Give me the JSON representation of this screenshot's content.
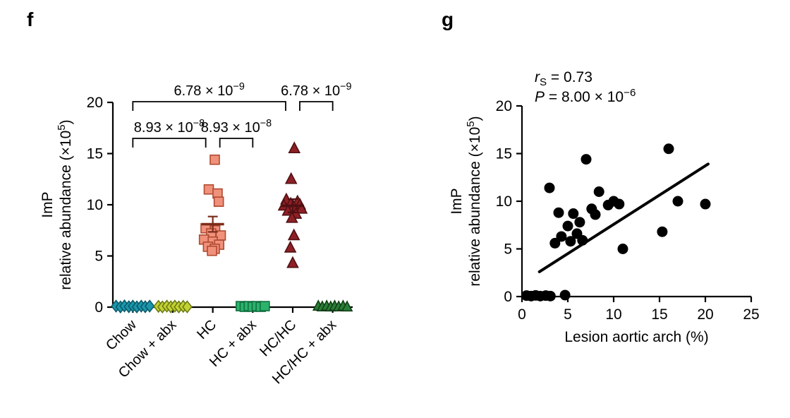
{
  "panels": {
    "f": {
      "label": "f"
    },
    "g": {
      "label": "g"
    }
  },
  "chart_data": [
    {
      "id": "f",
      "type": "scatter",
      "title": "",
      "ylabel": {
        "line1": "ImP",
        "line2_pre": "relative abundance (×10",
        "line2_sup": "5",
        "line2_post": ")"
      },
      "ylim": [
        0,
        20
      ],
      "yticks": [
        0,
        5,
        10,
        15,
        20
      ],
      "categories": [
        "Chow",
        "Chow + abx",
        "HC",
        "HC + abx",
        "HC/HC",
        "HC/HC + abx"
      ],
      "groups": [
        {
          "name": "Chow",
          "marker": "diamond",
          "fill": "#1b96ac",
          "stroke": "#0b5a68",
          "size": 14,
          "points": [
            [
              -0.42,
              0.1
            ],
            [
              -0.31,
              0.02
            ],
            [
              -0.21,
              0.12
            ],
            [
              -0.1,
              0.04
            ],
            [
              0,
              0.1
            ],
            [
              0.1,
              0.02
            ],
            [
              0.21,
              0.1
            ],
            [
              0.31,
              0.04
            ],
            [
              0.42,
              0.1
            ]
          ]
        },
        {
          "name": "Chow + abx",
          "marker": "diamond",
          "fill": "#c3d232",
          "stroke": "#6c7a15",
          "size": 14,
          "points": [
            [
              -0.36,
              0.08
            ],
            [
              -0.26,
              0.02
            ],
            [
              -0.15,
              0.1
            ],
            [
              -0.05,
              0.03
            ],
            [
              0.05,
              0.1
            ],
            [
              0.15,
              0.02
            ],
            [
              0.26,
              0.08
            ],
            [
              0.36,
              0.03
            ]
          ]
        },
        {
          "name": "HC",
          "marker": "square",
          "fill": "#f0917c",
          "stroke": "#b04a30",
          "size": 13,
          "mean": 8.1,
          "sem": 0.75,
          "mean_color": "#7c2d1a",
          "points": [
            [
              0.05,
              14.4
            ],
            [
              -0.1,
              11.5
            ],
            [
              0.12,
              11.1
            ],
            [
              0.15,
              10.3
            ],
            [
              -0.18,
              7.7
            ],
            [
              0.06,
              7.5
            ],
            [
              -0.04,
              7.2
            ],
            [
              0.2,
              7.0
            ],
            [
              -0.22,
              6.6
            ],
            [
              0,
              6.4
            ],
            [
              0.16,
              6.1
            ],
            [
              -0.12,
              5.9
            ],
            [
              0.05,
              5.7
            ],
            [
              -0.02,
              5.5
            ]
          ]
        },
        {
          "name": "HC + abx",
          "marker": "square",
          "fill": "#2bb36c",
          "stroke": "#11703f",
          "size": 13,
          "points": [
            [
              -0.3,
              0.1
            ],
            [
              -0.2,
              0.03
            ],
            [
              -0.1,
              0.1
            ],
            [
              0,
              0.04
            ],
            [
              0.1,
              0.1
            ],
            [
              0.2,
              0.03
            ],
            [
              0.3,
              0.1
            ]
          ]
        },
        {
          "name": "HC/HC",
          "marker": "triangle",
          "fill": "#8e2025",
          "stroke": "#501013",
          "size": 15,
          "mean": 9.9,
          "sem": 0.65,
          "mean_color": "#501013",
          "points": [
            [
              0.04,
              15.5
            ],
            [
              -0.04,
              12.5
            ],
            [
              -0.16,
              10.5
            ],
            [
              0.12,
              10.3
            ],
            [
              -0.05,
              10.1
            ],
            [
              0.18,
              10.0
            ],
            [
              -0.22,
              9.9
            ],
            [
              0.02,
              9.8
            ],
            [
              0.22,
              9.6
            ],
            [
              -0.12,
              9.4
            ],
            [
              0.08,
              9.1
            ],
            [
              -0.02,
              8.7
            ],
            [
              0.03,
              7.0
            ],
            [
              -0.06,
              5.8
            ],
            [
              0,
              4.3
            ]
          ]
        },
        {
          "name": "HC/HC + abx",
          "marker": "triangle",
          "fill": "#2a7d36",
          "stroke": "#123f18",
          "size": 14,
          "points": [
            [
              -0.36,
              0.1
            ],
            [
              -0.26,
              0.03
            ],
            [
              -0.15,
              0.1
            ],
            [
              -0.05,
              0.02
            ],
            [
              0.05,
              0.1
            ],
            [
              0.15,
              0.03
            ],
            [
              0.26,
              0.1
            ],
            [
              0.36,
              0.02
            ]
          ]
        }
      ],
      "significance": [
        {
          "i1": 0,
          "i2": 2,
          "level": 1,
          "mantissa": "8.93 × 10",
          "exp": "−8",
          "x2_off": -10
        },
        {
          "i1": 2,
          "i2": 3,
          "level": 1,
          "mantissa": "8.93 × 10",
          "exp": "−8",
          "x1_off": 10
        },
        {
          "i1": 0,
          "i2": 4,
          "level": 2,
          "mantissa": "6.78 × 10",
          "exp": "−9",
          "x2_off": -10
        },
        {
          "i1": 4,
          "i2": 5,
          "level": 2,
          "mantissa": "6.78 × 10",
          "exp": "−9",
          "x1_off": 10
        }
      ]
    },
    {
      "id": "g",
      "type": "scatter",
      "xlabel": "Lesion aortic arch (%)",
      "ylabel": {
        "line1": "ImP",
        "line2_pre": "relative abundance (×10",
        "line2_sup": "5",
        "line2_post": ")"
      },
      "xlim": [
        0,
        25
      ],
      "ylim": [
        0,
        20
      ],
      "xticks": [
        0,
        5,
        10,
        15,
        20,
        25
      ],
      "yticks": [
        0,
        5,
        10,
        15,
        20
      ],
      "point_color": "#000000",
      "points": [
        [
          0.5,
          0.1
        ],
        [
          1.0,
          0.05
        ],
        [
          1.5,
          0.12
        ],
        [
          2.0,
          0.05
        ],
        [
          2.6,
          0.1
        ],
        [
          3.1,
          0.05
        ],
        [
          4.7,
          0.15
        ],
        [
          3.0,
          11.4
        ],
        [
          3.6,
          5.6
        ],
        [
          4.0,
          8.8
        ],
        [
          4.3,
          6.3
        ],
        [
          5.0,
          7.4
        ],
        [
          5.3,
          5.8
        ],
        [
          5.6,
          8.7
        ],
        [
          6.0,
          6.6
        ],
        [
          6.3,
          7.8
        ],
        [
          6.6,
          5.9
        ],
        [
          7.0,
          14.4
        ],
        [
          7.6,
          9.2
        ],
        [
          8.0,
          8.6
        ],
        [
          8.4,
          11.0
        ],
        [
          9.4,
          9.6
        ],
        [
          10.0,
          10.0
        ],
        [
          10.6,
          9.7
        ],
        [
          11.0,
          5.0
        ],
        [
          15.3,
          6.8
        ],
        [
          16.0,
          15.5
        ],
        [
          17.0,
          10.0
        ],
        [
          20.0,
          9.7
        ]
      ],
      "regression_line": {
        "x1": 1.9,
        "y1": 2.6,
        "x2": 20.3,
        "y2": 13.9
      },
      "annotation": {
        "r_pre": "r",
        "r_sub": "S",
        "r_post": " = 0.73",
        "p_pre": "P",
        "p_mid": " = 8.00 × 10",
        "p_sup": "−6"
      }
    }
  ]
}
